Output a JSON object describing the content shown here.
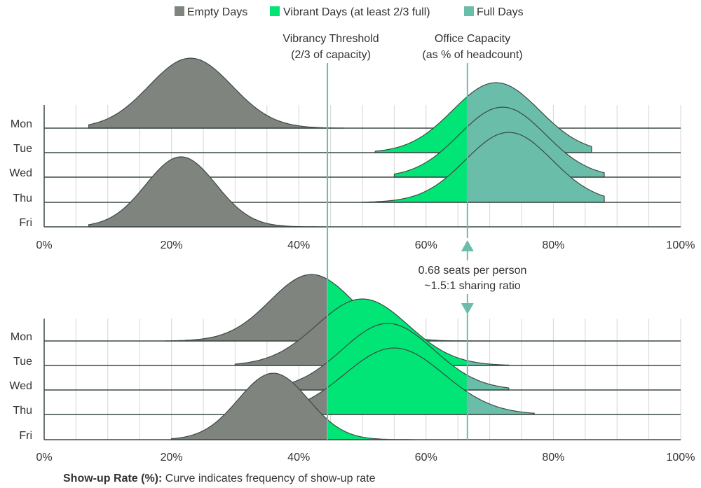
{
  "legend": {
    "empty": {
      "label": "Empty Days",
      "color": "#7f847f"
    },
    "vibrant": {
      "label": "Vibrant Days (at least 2/3 full)",
      "color": "#00e576"
    },
    "full": {
      "label": "Full Days",
      "color": "#6abda9"
    }
  },
  "annotations": {
    "vibrancy_line1": "Vibrancy Threshold",
    "vibrancy_line2": "(2/3 of capacity)",
    "capacity_line1": "Office Capacity",
    "capacity_line2": "(as % of headcount)",
    "seats_line1": "0.68 seats per person",
    "seats_line2": "~1.5:1 sharing ratio"
  },
  "footnote": {
    "bold": "Show-up Rate (%):",
    "text": " Curve indicates frequency of show-up rate"
  },
  "chart_data": [
    {
      "type": "area",
      "subtype": "ridgeline",
      "xlabel": "",
      "xlim": [
        0,
        100
      ],
      "xticks": [
        "0%",
        "20%",
        "40%",
        "60%",
        "80%",
        "100%"
      ],
      "vibrancy_threshold": 44.5,
      "office_capacity": 66.5,
      "grid": true,
      "rows": [
        "Mon",
        "Tue",
        "Wed",
        "Thu",
        "Fri"
      ],
      "series": [
        {
          "name": "Mon",
          "mean": 23,
          "sd": 6.5,
          "x_start": 7,
          "x_end": 47
        },
        {
          "name": "Tue",
          "mean": 71,
          "sd": 6.8,
          "x_start": 52,
          "x_end": 86
        },
        {
          "name": "Wed",
          "mean": 72,
          "sd": 6.8,
          "x_start": 55,
          "x_end": 88
        },
        {
          "name": "Thu",
          "mean": 73,
          "sd": 6.8,
          "x_start": 50,
          "x_end": 88
        },
        {
          "name": "Fri",
          "mean": 21.5,
          "sd": 5.5,
          "x_start": 7,
          "x_end": 44
        }
      ]
    },
    {
      "type": "area",
      "subtype": "ridgeline",
      "xlabel": "Show-up Rate (%)",
      "xlim": [
        0,
        100
      ],
      "xticks": [
        "0%",
        "20%",
        "40%",
        "60%",
        "80%",
        "100%"
      ],
      "vibrancy_threshold": 44.5,
      "office_capacity": 66.5,
      "grid": true,
      "rows": [
        "Mon",
        "Tue",
        "Wed",
        "Thu",
        "Fri"
      ],
      "series": [
        {
          "name": "Mon",
          "mean": 42,
          "sd": 6.5,
          "x_start": 19,
          "x_end": 70
        },
        {
          "name": "Tue",
          "mean": 50,
          "sd": 7.2,
          "x_start": 30,
          "x_end": 73
        },
        {
          "name": "Wed",
          "mean": 54,
          "sd": 7.2,
          "x_start": 35,
          "x_end": 73
        },
        {
          "name": "Thu",
          "mean": 55,
          "sd": 7.8,
          "x_start": 30,
          "x_end": 77
        },
        {
          "name": "Fri",
          "mean": 36,
          "sd": 5.5,
          "x_start": 20,
          "x_end": 58
        }
      ]
    }
  ]
}
